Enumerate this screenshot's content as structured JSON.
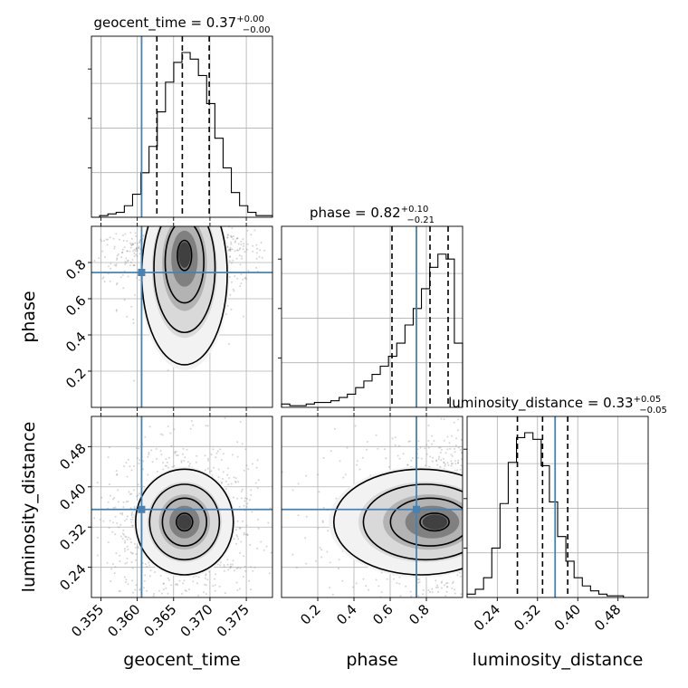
{
  "chart_data": {
    "type": "corner",
    "parameters": [
      "geocent_time",
      "phase",
      "luminosity_distance"
    ],
    "axis_labels": [
      "geocent_time",
      "phase",
      "luminosity_distance"
    ],
    "titles": [
      {
        "base": "geocent_time = 0.37",
        "plus": "+0.00",
        "minus": "−0.00"
      },
      {
        "base": "phase = 0.82",
        "plus": "+0.10",
        "minus": "−0.21"
      },
      {
        "base": "luminosity_distance = 0.33",
        "plus": "+0.05",
        "minus": "−0.05"
      }
    ],
    "ranges": [
      [
        0.3537,
        0.3786
      ],
      [
        0.0,
        1.0
      ],
      [
        0.18,
        0.54
      ]
    ],
    "ticks": [
      {
        "values": [
          0.355,
          0.36,
          0.365,
          0.37,
          0.375
        ],
        "labels": [
          "0.355",
          "0.360",
          "0.365",
          "0.370",
          "0.375"
        ]
      },
      {
        "values": [
          0.2,
          0.4,
          0.6,
          0.8
        ],
        "labels": [
          "0.2",
          "0.4",
          "0.6",
          "0.8"
        ]
      },
      {
        "values": [
          0.24,
          0.32,
          0.4,
          0.48
        ],
        "labels": [
          "0.24",
          "0.32",
          "0.40",
          "0.48"
        ]
      }
    ],
    "truths": [
      0.3606,
      0.745,
      0.355
    ],
    "quantiles": [
      [
        0.3627,
        0.3662,
        0.3699
      ],
      [
        0.61,
        0.82,
        0.92
      ],
      [
        0.28,
        0.33,
        0.38
      ]
    ],
    "histograms": [
      [
        0.0,
        0.01,
        0.02,
        0.03,
        0.07,
        0.14,
        0.27,
        0.43,
        0.64,
        0.82,
        0.94,
        1.0,
        0.96,
        0.86,
        0.69,
        0.48,
        0.3,
        0.15,
        0.07,
        0.03,
        0.01,
        0.01
      ],
      [
        0.02,
        0.01,
        0.01,
        0.02,
        0.03,
        0.03,
        0.04,
        0.06,
        0.08,
        0.12,
        0.16,
        0.2,
        0.25,
        0.31,
        0.39,
        0.5,
        0.6,
        0.72,
        0.85,
        0.93,
        0.9,
        0.39
      ],
      [
        0.02,
        0.05,
        0.12,
        0.3,
        0.57,
        0.82,
        0.97,
        1.0,
        0.96,
        0.8,
        0.58,
        0.37,
        0.22,
        0.12,
        0.07,
        0.04,
        0.02,
        0.01,
        0.01,
        0.0,
        0.0,
        0.0
      ]
    ],
    "grid": true,
    "pairs": [
      {
        "x": "geocent_time",
        "y": "phase",
        "center": [
          0.3665,
          0.86
        ],
        "spread": [
          0.0028,
          0.17
        ]
      },
      {
        "x": "geocent_time",
        "y": "luminosity_distance",
        "center": [
          0.3665,
          0.33
        ],
        "spread": [
          0.0032,
          0.05
        ]
      },
      {
        "x": "phase",
        "y": "luminosity_distance",
        "center": [
          0.86,
          0.33
        ],
        "spread": [
          0.17,
          0.05
        ]
      }
    ]
  }
}
